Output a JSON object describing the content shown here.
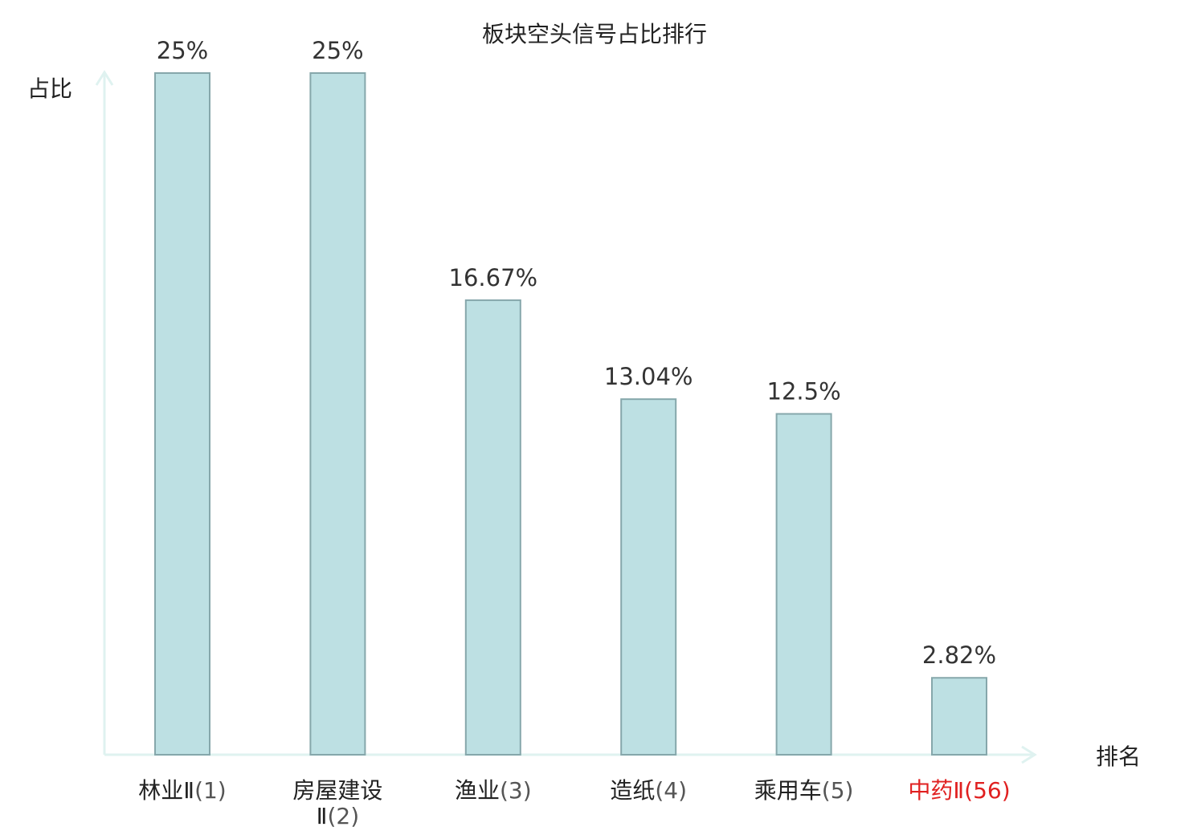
{
  "chart_data": {
    "type": "bar",
    "title": "板块空头信号占比排行",
    "xlabel": "排名",
    "ylabel": "占比",
    "ylim": [
      0,
      25
    ],
    "grid": false,
    "legend": "none",
    "categories": [
      {
        "name": "林业Ⅱ",
        "rank": "(1)",
        "highlight": false
      },
      {
        "name": "房屋建设Ⅱ",
        "rank": "(2)",
        "highlight": false
      },
      {
        "name": "渔业",
        "rank": "(3)",
        "highlight": false
      },
      {
        "name": "造纸",
        "rank": "(4)",
        "highlight": false
      },
      {
        "name": "乘用车",
        "rank": "(5)",
        "highlight": false
      },
      {
        "name": "中药Ⅱ",
        "rank": "(56)",
        "highlight": true
      }
    ],
    "values": [
      25,
      25,
      16.67,
      13.04,
      12.5,
      2.82
    ],
    "value_labels": [
      "25%",
      "25%",
      "16.67%",
      "13.04%",
      "12.5%",
      "2.82%"
    ]
  },
  "colors": {
    "bar_fill": "#bde0e3",
    "bar_stroke": "#86a7ab",
    "axis": "#dff2f0",
    "highlight": "#e02020",
    "text": "#222222"
  }
}
